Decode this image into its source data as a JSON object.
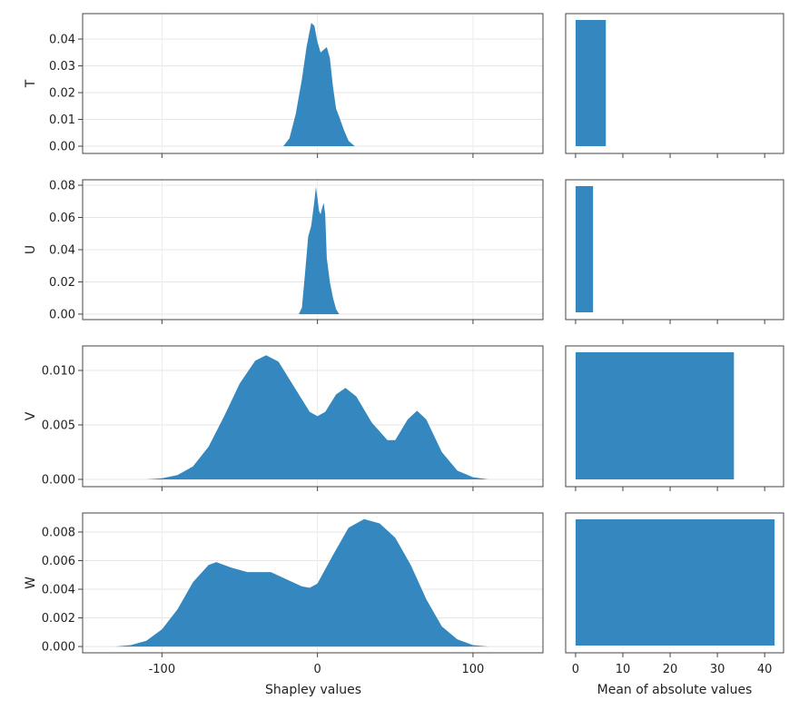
{
  "chart_data": {
    "type": "area",
    "xlabel_left": "Shapley values",
    "xlabel_right": "Mean of absolute values",
    "x_ticks_left": [
      -100,
      0,
      100
    ],
    "x_ticks_right": [
      0,
      10,
      20,
      30,
      40
    ],
    "xlim_left": [
      -151,
      145
    ],
    "xlim_right": [
      -2.1,
      44
    ],
    "color": "#1f7bb8",
    "grid": true,
    "rows": [
      {
        "name": "T",
        "mean_abs": 6.4,
        "ylim": [
          -0.0027,
          0.0495
        ],
        "yticks": [
          "0.00",
          "0.01",
          "0.02",
          "0.03",
          "0.04"
        ],
        "ytick_values": [
          0,
          0.01,
          0.02,
          0.03,
          0.04
        ],
        "x": [
          -22,
          -18,
          -14,
          -10,
          -7,
          -4,
          -2,
          0,
          2,
          4,
          6,
          8,
          10,
          12,
          14,
          17,
          20,
          24
        ],
        "y": [
          0,
          0.003,
          0.012,
          0.025,
          0.037,
          0.046,
          0.045,
          0.039,
          0.035,
          0.036,
          0.037,
          0.033,
          0.022,
          0.014,
          0.011,
          0.006,
          0.002,
          0
        ]
      },
      {
        "name": "U",
        "mean_abs": 3.7,
        "ylim": [
          -0.0034,
          0.0834
        ],
        "yticks": [
          "0.00",
          "0.02",
          "0.04",
          "0.06",
          "0.08"
        ],
        "ytick_values": [
          0,
          0.02,
          0.04,
          0.06,
          0.08
        ],
        "x": [
          -12,
          -10,
          -8,
          -6,
          -4,
          -2,
          -1,
          0,
          1,
          2,
          3,
          4,
          5,
          6,
          8,
          10,
          12,
          14
        ],
        "y": [
          0,
          0.004,
          0.025,
          0.048,
          0.055,
          0.07,
          0.079,
          0.072,
          0.064,
          0.062,
          0.066,
          0.069,
          0.062,
          0.035,
          0.02,
          0.01,
          0.003,
          0
        ]
      },
      {
        "name": "V",
        "mean_abs": 33.5,
        "ylim": [
          -0.00067,
          0.01225
        ],
        "yticks": [
          "0.000",
          "0.005",
          "0.010"
        ],
        "ytick_values": [
          0,
          0.005,
          0.01
        ],
        "x": [
          -110,
          -100,
          -90,
          -80,
          -70,
          -60,
          -50,
          -40,
          -33,
          -25,
          -15,
          -5,
          0,
          5,
          12,
          18,
          25,
          35,
          45,
          50,
          58,
          64,
          70,
          80,
          90,
          100,
          110
        ],
        "y": [
          0,
          0.0001,
          0.0004,
          0.0012,
          0.003,
          0.0058,
          0.0088,
          0.0109,
          0.0114,
          0.0108,
          0.0085,
          0.0062,
          0.0058,
          0.0062,
          0.0078,
          0.0084,
          0.0076,
          0.0052,
          0.0036,
          0.0036,
          0.0055,
          0.0063,
          0.0055,
          0.0025,
          0.0008,
          0.0002,
          0
        ]
      },
      {
        "name": "W",
        "mean_abs": 42.1,
        "ylim": [
          -0.00044,
          0.00933
        ],
        "yticks": [
          "0.000",
          "0.002",
          "0.004",
          "0.006",
          "0.008"
        ],
        "ytick_values": [
          0,
          0.002,
          0.004,
          0.006,
          0.008
        ],
        "x": [
          -130,
          -120,
          -110,
          -100,
          -90,
          -80,
          -70,
          -65,
          -55,
          -45,
          -30,
          -20,
          -10,
          -5,
          0,
          10,
          20,
          30,
          40,
          50,
          60,
          70,
          80,
          90,
          100,
          110
        ],
        "y": [
          0,
          0.0001,
          0.0004,
          0.0012,
          0.0026,
          0.0045,
          0.0057,
          0.0059,
          0.0055,
          0.0052,
          0.0052,
          0.0047,
          0.0042,
          0.0041,
          0.0044,
          0.0064,
          0.0083,
          0.0089,
          0.0086,
          0.0076,
          0.0057,
          0.0033,
          0.0014,
          0.0005,
          0.0001,
          0
        ]
      }
    ]
  }
}
